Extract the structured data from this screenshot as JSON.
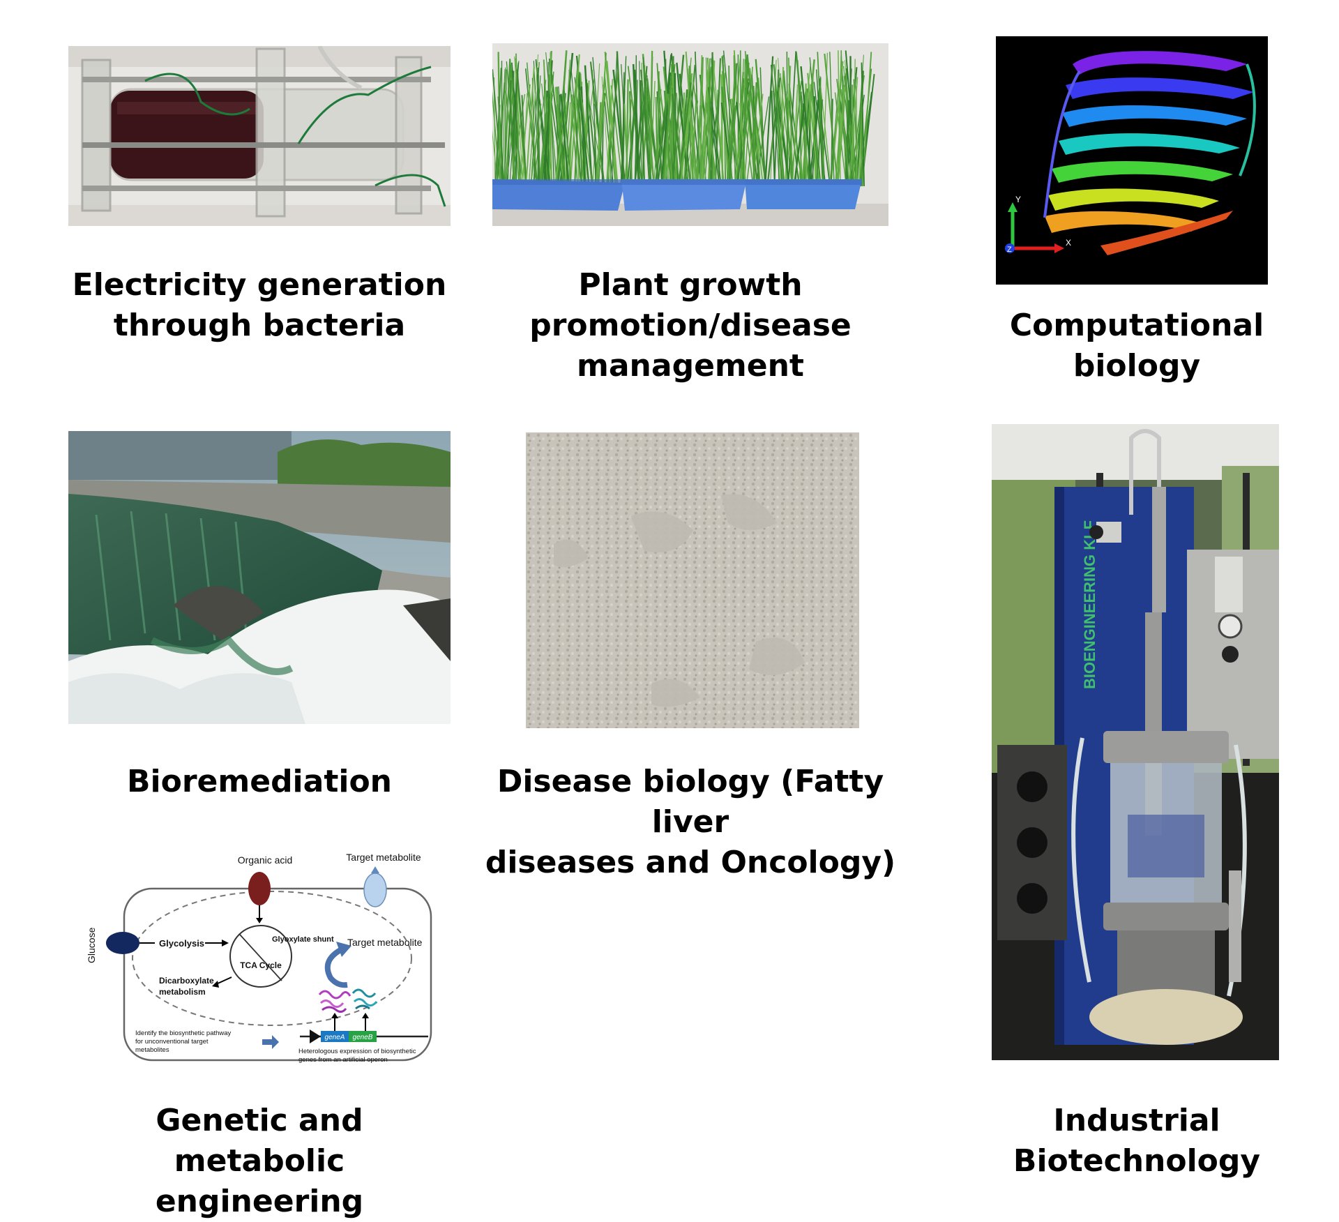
{
  "panels": [
    {
      "id": "electricity",
      "caption_lines": [
        "Electricity generation",
        "through bacteria"
      ]
    },
    {
      "id": "plant",
      "caption_lines": [
        "Plant growth",
        "promotion/disease",
        "management"
      ]
    },
    {
      "id": "computational",
      "caption_lines": [
        "Computational biology"
      ],
      "axis_labels": {
        "y": "Y",
        "x": "X",
        "z": "Z"
      }
    },
    {
      "id": "bioremediation",
      "caption_lines": [
        "Bioremediation"
      ]
    },
    {
      "id": "disease",
      "caption_lines": [
        "Disease biology (Fatty liver",
        "diseases and Oncology)"
      ]
    },
    {
      "id": "industrial",
      "caption_lines": [
        "Industrial Biotechnology"
      ],
      "machine_label": "BIOENGINEERING KLF"
    },
    {
      "id": "genetic",
      "caption_lines": [
        "Genetic and metabolic",
        "engineering"
      ]
    }
  ],
  "diagram": {
    "organic_acid": "Organic acid",
    "target_metabolite_top": "Target metabolite",
    "glucose": "Glucose",
    "glycolysis": "Glycolysis",
    "glyoxylate_shunt": "Glyoxylate shunt",
    "target_metabolite_right": "Target metabolite",
    "tca_cycle": "TCA Cycle",
    "dicarboxylate_1": "Dicarboxylate",
    "dicarboxylate_2": "metabolism",
    "identify_1": "Identify the biosynthetic pathway",
    "identify_2": "for unconventional target",
    "identify_3": "metabolites",
    "gene_a": "geneA",
    "gene_b": "geneB",
    "hetero_1": "Heterologous expression of biosynthetic",
    "hetero_2": "genes from an artificial operon"
  }
}
